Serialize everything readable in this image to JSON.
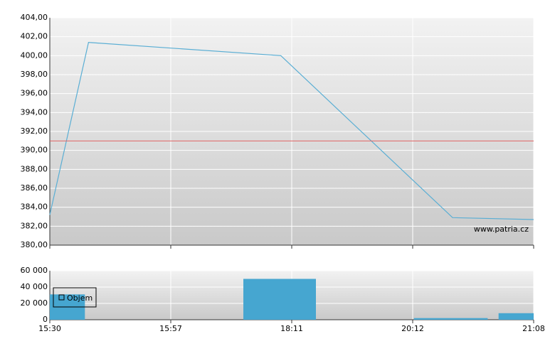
{
  "chart_data": [
    {
      "type": "line",
      "x": [
        0,
        0.32,
        1.91,
        3.33,
        4
      ],
      "series": [
        {
          "color": "#5aaed4",
          "values": [
            383.2,
            401.4,
            400.0,
            382.9,
            382.7
          ]
        }
      ],
      "xlim": [
        0,
        4
      ],
      "ylim": [
        380,
        404
      ],
      "yticks": [
        {
          "value": 380,
          "label": "380,00"
        },
        {
          "value": 382,
          "label": "382,00"
        },
        {
          "value": 384,
          "label": "384,00"
        },
        {
          "value": 386,
          "label": "386,00"
        },
        {
          "value": 388,
          "label": "388,00"
        },
        {
          "value": 390,
          "label": "390,00"
        },
        {
          "value": 392,
          "label": "392,00"
        },
        {
          "value": 394,
          "label": "394,00"
        },
        {
          "value": 396,
          "label": "396,00"
        },
        {
          "value": 398,
          "label": "398,00"
        },
        {
          "value": 400,
          "label": "400,00"
        },
        {
          "value": 402,
          "label": "402,00"
        },
        {
          "value": 404,
          "label": "404,00"
        }
      ],
      "reference_line": {
        "value": 391.0,
        "color": "#e06666"
      },
      "watermark": "www.patria.cz",
      "grid": true
    },
    {
      "type": "bar",
      "x_start": [
        0,
        1.6,
        3.01,
        3.71
      ],
      "x_end": [
        0.29,
        2.2,
        3.62,
        4
      ],
      "series": [
        {
          "name": "Objem",
          "color": "#46a6d0",
          "values": [
            31000,
            50000,
            2000,
            8000
          ]
        }
      ],
      "xlim": [
        0,
        4
      ],
      "xticks": [
        {
          "value": 0,
          "label": "15:30"
        },
        {
          "value": 1,
          "label": "15:57"
        },
        {
          "value": 2,
          "label": "18:11"
        },
        {
          "value": 3,
          "label": "20:12"
        },
        {
          "value": 4,
          "label": "21:08"
        }
      ],
      "ylim": [
        0,
        60000
      ],
      "yticks": [
        0,
        {
          "value": 20000,
          "label": "20 000"
        },
        {
          "value": 40000,
          "label": "40 000"
        },
        {
          "value": 60000,
          "label": "60 000"
        }
      ],
      "grid": true
    }
  ]
}
